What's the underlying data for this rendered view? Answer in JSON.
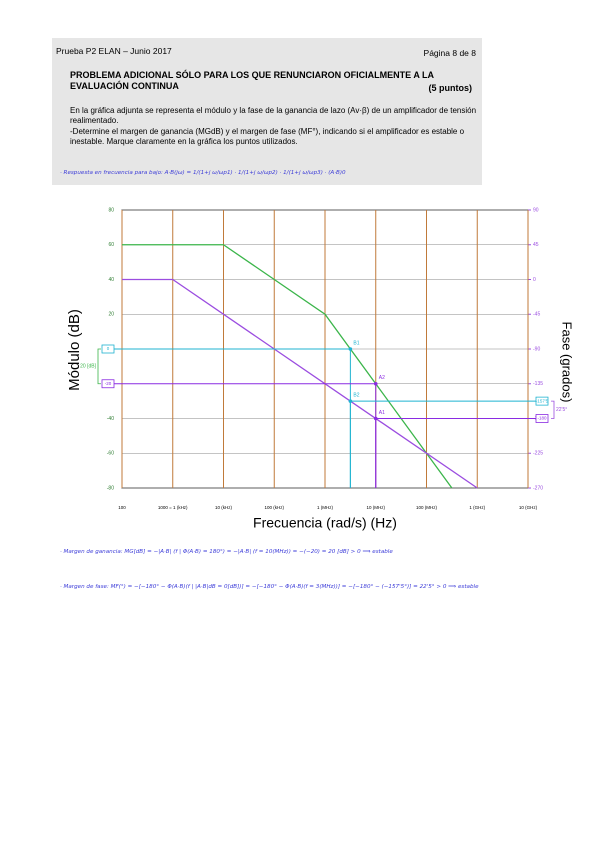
{
  "header": {
    "exam": "Prueba P2 ELAN – Junio 2017",
    "page": "Página 8 de 8",
    "title": "PROBLEMA ADICIONAL SÓLO PARA LOS QUE RENUNCIARON OFICIALMENTE A LA EVALUACIÓN CONTINUA",
    "points": "(5 puntos)",
    "paragraphs": [
      "En la gráfica adjunta se representa el módulo y la fase de la ganancia de lazo (Av·β) de un amplificador de tensión realimentado.",
      "-Determine el margen de ganancia (MGdB) y el margen de fase (MF°), indicando si el amplificador es estable o inestable. Marque claramente en la gráfica los puntos utilizados."
    ]
  },
  "notes": {
    "response": "· Respuesta en frecuencia para bajo: A·B(jω) = 1/(1+j ω/ωp1) · 1/(1+j ω/ωp2) · 1/(1+j ω/ωp3) · (A·B)0",
    "gain_margin": "· Margen de ganancia: MG[dB] = −|A·B| (f | Φ(A·B) = 180°) = −|A·B| (f = 10(MHz)) = −(−20) = 20 [dB] > 0 ⟹ estable",
    "phase_margin": "· Margen de fase: MF(°) = −[−180° − Φ(A·B)(f | |A·B|dB = 0[dB])] = −[−180° − Φ(A·B)(f = 3(MHz))] = −[−180° − (−157'5°)] = 22'5° > 0 ⟹ estable"
  },
  "chart_data": {
    "type": "line",
    "log_x": true,
    "ylabel": "Módulo (dB)",
    "y2label": "Fase (grados)",
    "xlabel": "Frecuencia (rad/s) (Hz)",
    "xlim": [
      100,
      10000000000
    ],
    "xticks": [
      {
        "value": 100,
        "label": "100"
      },
      {
        "value": 1000,
        "label": "1000 = 1 (kHz)"
      },
      {
        "value": 10000,
        "label": "10 (kHz)"
      },
      {
        "value": 100000,
        "label": "100 (kHz)"
      },
      {
        "value": 1000000,
        "label": "1 (MHz)"
      },
      {
        "value": 10000000,
        "label": "10 (MHz)"
      },
      {
        "value": 100000000,
        "label": "100 (MHz)"
      },
      {
        "value": 1000000000,
        "label": "1 (GHz)"
      },
      {
        "value": 10000000000,
        "label": "10 (GHz)"
      }
    ],
    "ylim": [
      -80,
      80
    ],
    "yticks": [
      -80,
      -60,
      -40,
      -20,
      0,
      20,
      40,
      60,
      80
    ],
    "y2lim": [
      -270,
      90
    ],
    "y2ticks": [
      -270,
      -225,
      -180,
      -135,
      -90,
      -45,
      0,
      45,
      90
    ],
    "grid": true,
    "series": [
      {
        "color": "#3bb54a",
        "x": [
          100,
          10000,
          1000000,
          316000000
        ],
        "values": [
          60,
          60,
          20,
          -80
        ]
      },
      {
        "color": "#9b4de0",
        "axis": "y2",
        "x": [
          100,
          1000,
          1000000000
        ],
        "values": [
          0,
          0,
          -270
        ]
      }
    ],
    "guides": [
      {
        "label": "B1",
        "x": 3162278,
        "value": 0,
        "axis": "y",
        "value_label": "0",
        "color": "#1fb3d1"
      },
      {
        "label": "A2",
        "x": 10000000,
        "value": -20,
        "axis": "y",
        "value_label": "-20",
        "color": "#8a2be2"
      },
      {
        "label": "B2",
        "x": 3162278,
        "value": -157.5,
        "axis": "y2",
        "value_label": "-157'5",
        "color": "#1fb3d1"
      },
      {
        "label": "A1",
        "x": 10000000,
        "value": -180,
        "axis": "y2",
        "value_label": "-180",
        "color": "#8a2be2"
      }
    ],
    "brackets": [
      {
        "text": "20 [dB]",
        "from": 0,
        "to": -20,
        "axis": "y",
        "color": "#3bb54a"
      },
      {
        "text": "22'5°",
        "from": -157.5,
        "to": -180,
        "axis": "y2",
        "color": "#9b4de0"
      }
    ]
  }
}
